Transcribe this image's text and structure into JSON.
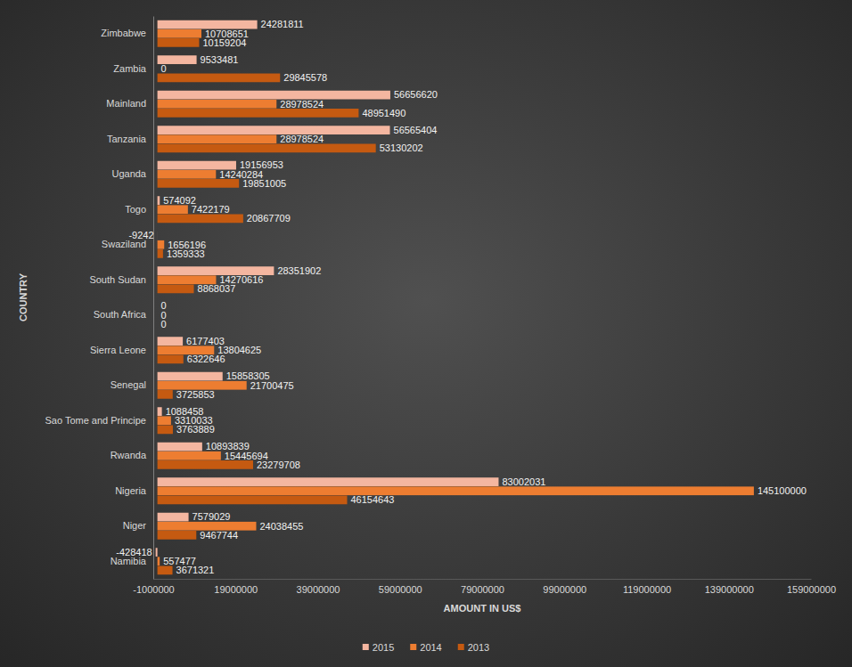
{
  "chart_data": {
    "type": "bar",
    "orientation": "horizontal",
    "x_label": "AMOUNT IN US$",
    "y_label": "COUNTRY",
    "categories": [
      "Zimbabwe",
      "Zambia",
      "Mainland",
      "Tanzania",
      "Uganda",
      "Togo",
      "Swaziland",
      "South Sudan",
      "South Africa",
      "Sierra Leone",
      "Senegal",
      "Sao Tome and Principe",
      "Rwanda",
      "Nigeria",
      "Niger",
      "Namibia"
    ],
    "series": [
      {
        "name": "2015",
        "color": "#f4b6a0",
        "values": [
          24281811,
          9533481,
          56656620,
          56565404,
          19156953,
          574092,
          -9242,
          28351902,
          0,
          6177403,
          15858305,
          1088458,
          10893839,
          83002031,
          7579029,
          -428418
        ]
      },
      {
        "name": "2014",
        "color": "#ed7d31",
        "values": [
          10708651,
          0,
          28978524,
          28978524,
          14240284,
          7422179,
          1656196,
          14270616,
          0,
          13804625,
          21700475,
          3310033,
          15445694,
          145100000,
          24038455,
          557477
        ]
      },
      {
        "name": "2013",
        "color": "#c55a11",
        "values": [
          10159204,
          29845578,
          48951490,
          53130202,
          19851005,
          20867709,
          1359333,
          8868037,
          0,
          6322646,
          3725853,
          3763889,
          23279708,
          46154643,
          9467744,
          3671321
        ]
      }
    ],
    "xlim": [
      -1000000,
      159000000
    ],
    "xticks": [
      -1000000,
      19000000,
      39000000,
      59000000,
      79000000,
      99000000,
      119000000,
      139000000,
      159000000
    ],
    "grid": false,
    "legend": "bottom",
    "data_labels": true
  }
}
